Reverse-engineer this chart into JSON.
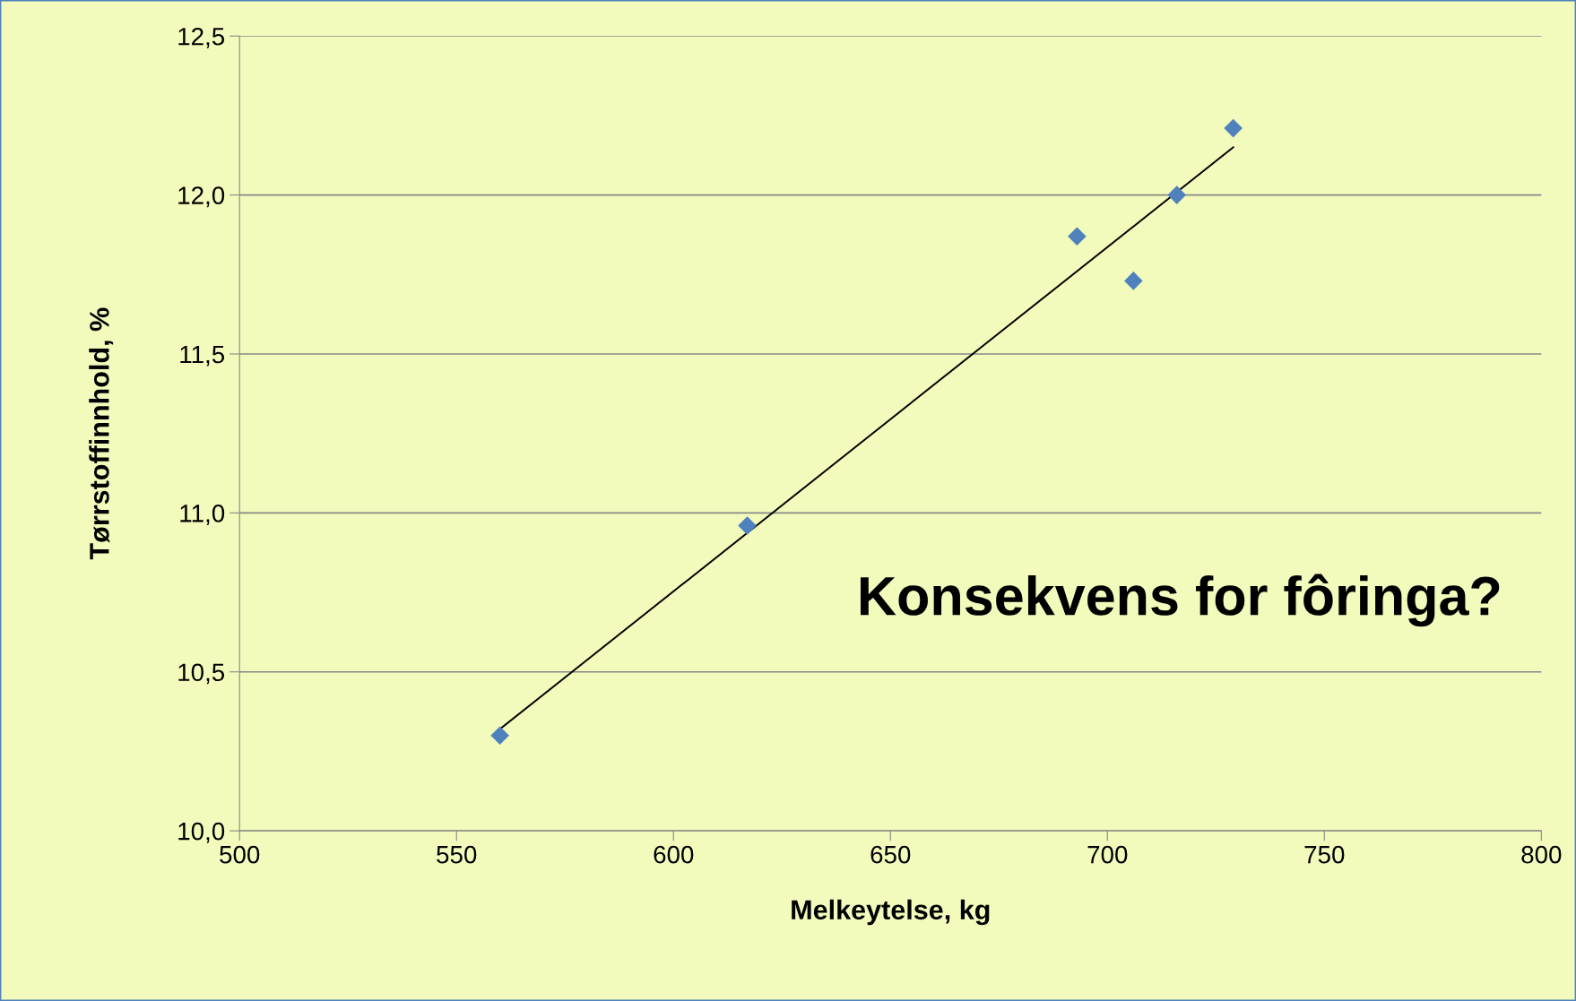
{
  "chart_data": {
    "type": "scatter",
    "xlabel": "Melkeytelse, kg",
    "ylabel": "Tørrstoffinnhold, %",
    "xlim": [
      500,
      800
    ],
    "xticks": [
      500,
      550,
      600,
      650,
      700,
      750,
      800
    ],
    "ylim": [
      10.0,
      12.5
    ],
    "yticks": [
      {
        "value": 10.0,
        "label": "10,0"
      },
      {
        "value": 10.5,
        "label": "10,5"
      },
      {
        "value": 11.0,
        "label": "11,0"
      },
      {
        "value": 11.5,
        "label": "11,5"
      },
      {
        "value": 12.0,
        "label": "12,0"
      },
      {
        "value": 12.5,
        "label": "12,5"
      }
    ],
    "grid": "y",
    "marker": "diamond",
    "legend": false,
    "series": [
      {
        "color": "#4f81bd",
        "x": [
          560,
          617,
          693,
          706,
          716,
          729
        ],
        "values": [
          10.3,
          10.96,
          11.87,
          11.73,
          12.0,
          12.21
        ]
      },
      {
        "type": "line",
        "color": "#000000",
        "x": [
          560,
          729
        ],
        "values": [
          10.32,
          12.15
        ],
        "marker": "none",
        "line_style": "solid"
      }
    ],
    "annotations": [
      "Konsekvens for fôringa?"
    ]
  }
}
